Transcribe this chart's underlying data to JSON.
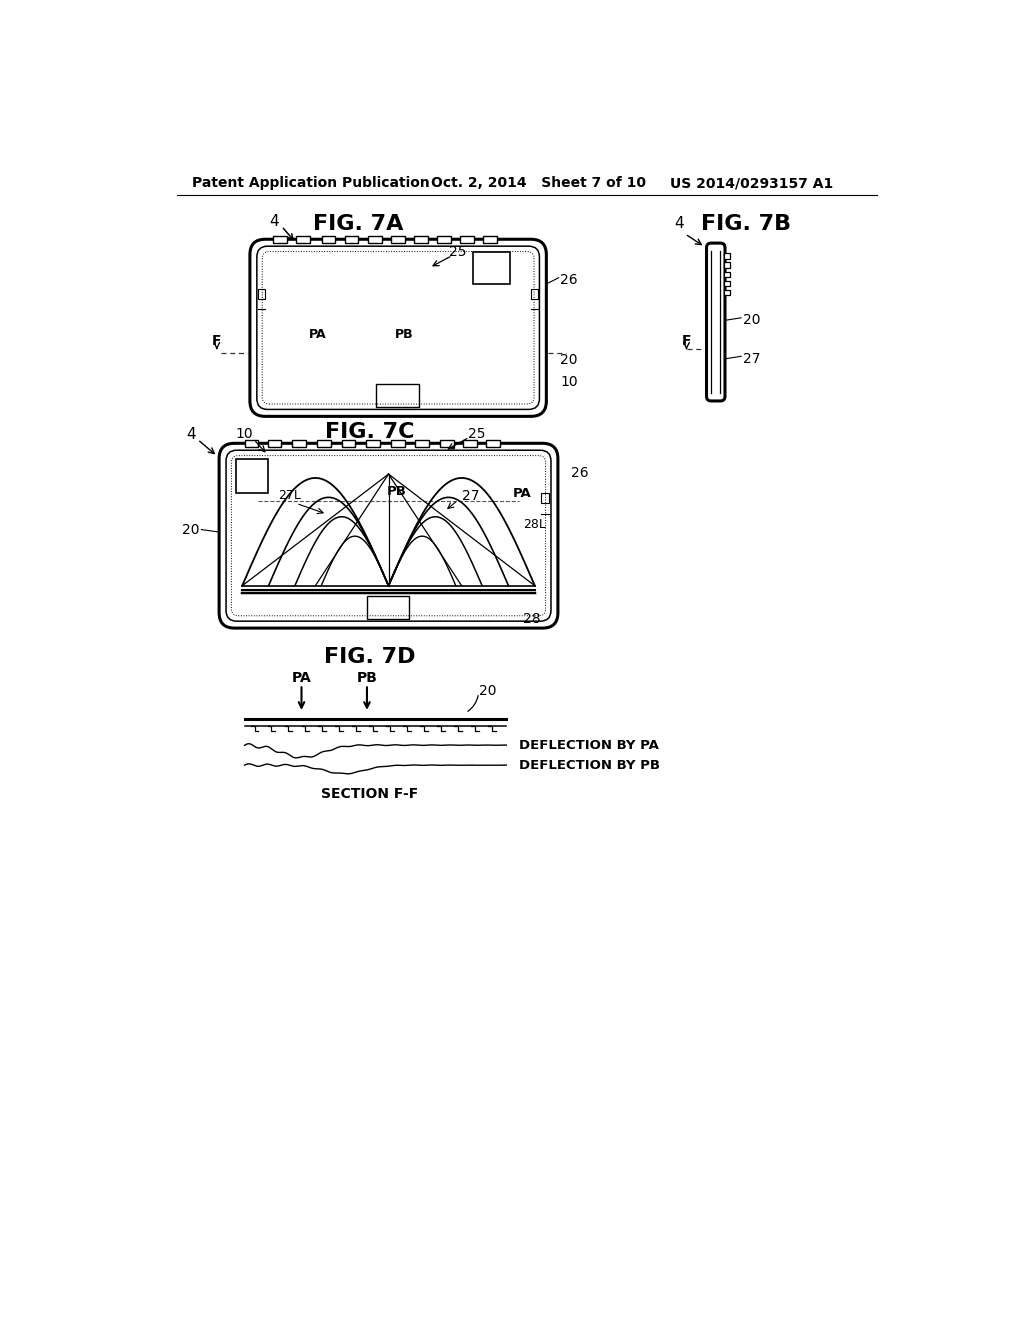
{
  "header_left": "Patent Application Publication",
  "header_mid": "Oct. 2, 2014   Sheet 7 of 10",
  "header_right": "US 2014/0293157 A1",
  "fig7a_title": "FIG. 7A",
  "fig7b_title": "FIG. 7B",
  "fig7c_title": "FIG. 7C",
  "fig7d_title": "FIG. 7D",
  "bg_color": "#ffffff",
  "line_color": "#000000"
}
